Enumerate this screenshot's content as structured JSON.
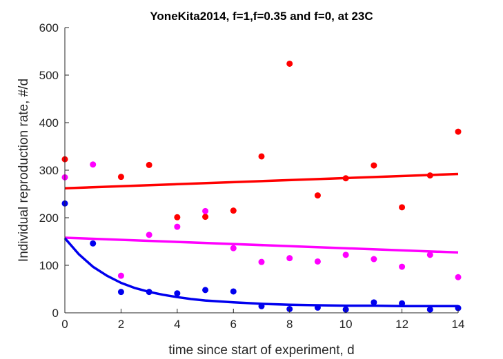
{
  "chart_data": {
    "type": "scatter",
    "title": "YoneKita2014, f=1,f=0.35 and f=0, at 23C",
    "xlabel": "time since start of experiment, d",
    "ylabel": "Individual reproduction rate, #/d",
    "xlim": [
      0,
      14
    ],
    "ylim": [
      0,
      600
    ],
    "xticks": [
      0,
      2,
      4,
      6,
      8,
      10,
      12,
      14
    ],
    "yticks": [
      0,
      100,
      200,
      300,
      400,
      500,
      600
    ],
    "grid": false,
    "series": [
      {
        "color": "#ff0000",
        "points": {
          "x": [
            0,
            2,
            3,
            4,
            5,
            6,
            7,
            8,
            9,
            10,
            11,
            12,
            13,
            14
          ],
          "y": [
            323,
            286,
            311,
            201,
            202,
            215,
            329,
            524,
            247,
            283,
            310,
            222,
            289,
            381
          ]
        },
        "fit": {
          "x": [
            0,
            14
          ],
          "y": [
            262,
            292
          ]
        }
      },
      {
        "color": "#ff00ff",
        "points": {
          "x": [
            0,
            1,
            2,
            3,
            4,
            5,
            6,
            7,
            8,
            9,
            10,
            11,
            12,
            13,
            14
          ],
          "y": [
            285,
            312,
            78,
            164,
            181,
            214,
            136,
            107,
            115,
            108,
            122,
            113,
            97,
            122,
            75
          ]
        },
        "fit": {
          "x": [
            0,
            14
          ],
          "y": [
            158,
            127
          ]
        }
      },
      {
        "color": "#0000ee",
        "points": {
          "x": [
            0,
            1,
            2,
            3,
            4,
            5,
            6,
            7,
            8,
            9,
            10,
            11,
            12,
            13,
            14
          ],
          "y": [
            230,
            146,
            44,
            44,
            41,
            48,
            45,
            14,
            8,
            11,
            7,
            22,
            20,
            7,
            10
          ]
        },
        "fit": {
          "x": [
            0,
            0.5,
            1,
            1.5,
            2,
            2.5,
            3,
            3.5,
            4,
            4.5,
            5,
            6,
            7,
            8,
            9,
            10,
            11,
            12,
            13,
            14
          ],
          "y": [
            157,
            123,
            97,
            78,
            63,
            52,
            44,
            38,
            33,
            29,
            26,
            22,
            19,
            17,
            16,
            15,
            15,
            14,
            14,
            14
          ]
        }
      }
    ]
  }
}
